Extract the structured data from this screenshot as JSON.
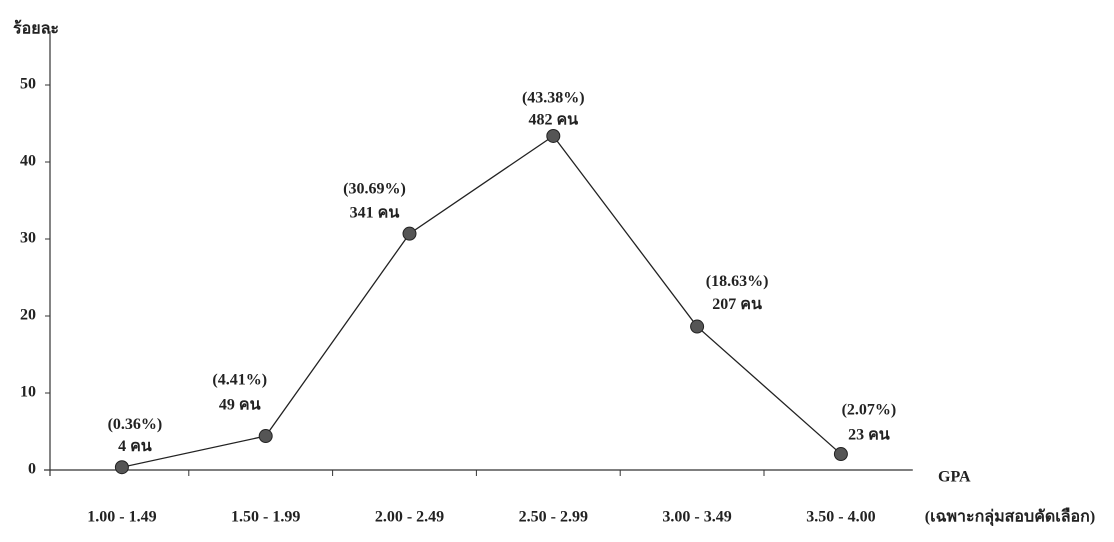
{
  "chart_data": {
    "type": "line",
    "y_label": "ร้อยละ",
    "x_label": "GPA",
    "note": "(เฉพาะกลุ่มสอบคัดเลือก)",
    "categories": [
      "1.00 - 1.49",
      "1.50 - 1.99",
      "2.00 - 2.49",
      "2.50 - 2.99",
      "3.00 - 3.49",
      "3.50 - 4.00"
    ],
    "values": [
      0.36,
      4.41,
      30.69,
      43.38,
      18.63,
      2.07
    ],
    "value_labels": [
      "(0.36%)",
      "(4.41%)",
      "(30.69%)",
      "(43.38%)",
      "(18.63%)",
      "(2.07%)"
    ],
    "count_labels": [
      "4 คน",
      "49 คน",
      "341 คน",
      "482 คน",
      "207 คน",
      "23 คน"
    ],
    "color": "#555555",
    "ylim": [
      0,
      57
    ],
    "yticks": [
      0,
      10,
      20,
      30,
      40,
      50
    ]
  }
}
